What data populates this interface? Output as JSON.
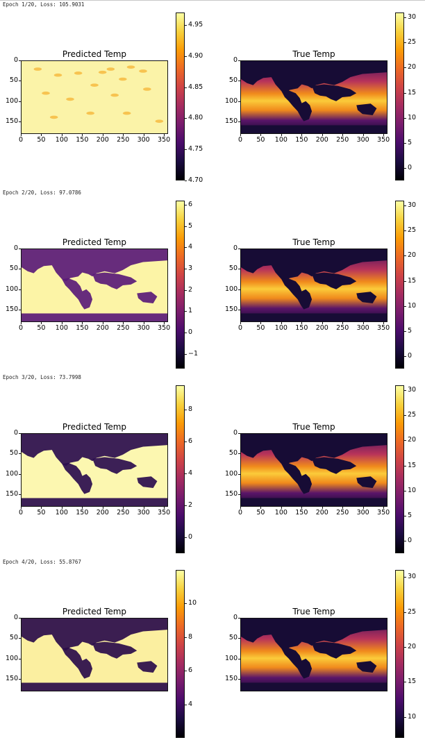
{
  "colormap": {
    "name": "inferno",
    "stops": [
      "#000004",
      "#1b0c41",
      "#4a0c6b",
      "#781c6d",
      "#a52c60",
      "#cf4446",
      "#ed6925",
      "#fb9b06",
      "#f7d13d",
      "#fcffa4"
    ]
  },
  "panels": [
    {
      "log": "Epoch 1/20, Loss: 105.9031",
      "predicted": {
        "title": "Predicted Temp",
        "y_ticks": [
          "0",
          "50",
          "100",
          "150"
        ],
        "x_ticks": [
          "0",
          "50",
          "100",
          "150",
          "200",
          "250",
          "300",
          "350"
        ],
        "colorbar_ticks": [
          "4.95",
          "4.90",
          "4.85",
          "4.80",
          "4.75",
          "4.70"
        ],
        "colorbar_range": [
          4.7,
          4.97
        ]
      },
      "true": {
        "title": "True Temp",
        "y_ticks": [
          "0",
          "50",
          "100",
          "150"
        ],
        "x_ticks": [
          "0",
          "50",
          "100",
          "150",
          "200",
          "250",
          "300",
          "350"
        ],
        "colorbar_ticks": [
          "30",
          "25",
          "20",
          "15",
          "10",
          "5",
          "0"
        ],
        "colorbar_range": [
          -2.5,
          31
        ]
      }
    },
    {
      "log": "Epoch 2/20, Loss: 97.0786",
      "predicted": {
        "title": "Predicted Temp",
        "y_ticks": [
          "0",
          "50",
          "100",
          "150"
        ],
        "x_ticks": [
          "0",
          "50",
          "100",
          "150",
          "200",
          "250",
          "300",
          "350"
        ],
        "colorbar_ticks": [
          "6",
          "5",
          "4",
          "3",
          "2",
          "1",
          "0",
          "−1"
        ],
        "colorbar_range": [
          -1.7,
          6.2
        ]
      },
      "true": {
        "title": "True Temp",
        "y_ticks": [
          "0",
          "50",
          "100",
          "150"
        ],
        "x_ticks": [
          "0",
          "50",
          "100",
          "150",
          "200",
          "250",
          "300",
          "350"
        ],
        "colorbar_ticks": [
          "30",
          "25",
          "20",
          "15",
          "10",
          "5",
          "0"
        ],
        "colorbar_range": [
          -2.5,
          31
        ]
      }
    },
    {
      "log": "Epoch 3/20, Loss: 73.7998",
      "predicted": {
        "title": "Predicted Temp",
        "y_ticks": [
          "0",
          "50",
          "100",
          "150"
        ],
        "x_ticks": [
          "0",
          "50",
          "100",
          "150",
          "200",
          "250",
          "300",
          "350"
        ],
        "colorbar_ticks": [
          "8",
          "6",
          "4",
          "2",
          "0"
        ],
        "colorbar_range": [
          -1,
          9.5
        ]
      },
      "true": {
        "title": "True Temp",
        "y_ticks": [
          "0",
          "50",
          "100",
          "150"
        ],
        "x_ticks": [
          "0",
          "50",
          "100",
          "150",
          "200",
          "250",
          "300",
          "350"
        ],
        "colorbar_ticks": [
          "30",
          "25",
          "20",
          "15",
          "10",
          "5",
          "0"
        ],
        "colorbar_range": [
          -2.5,
          31
        ]
      }
    },
    {
      "log": "Epoch 4/20, Loss: 55.8767",
      "predicted": {
        "title": "Predicted Temp",
        "y_ticks": [
          "0",
          "50",
          "100",
          "150"
        ],
        "x_ticks": [],
        "colorbar_ticks": [
          "10",
          "8",
          "6",
          "4"
        ],
        "colorbar_range": [
          2,
          12
        ]
      },
      "true": {
        "title": "True Temp",
        "y_ticks": [
          "0",
          "50",
          "100",
          "150"
        ],
        "x_ticks": [],
        "colorbar_ticks": [
          "30",
          "25",
          "20",
          "15",
          "10"
        ],
        "colorbar_range": [
          7,
          31
        ]
      }
    }
  ]
}
